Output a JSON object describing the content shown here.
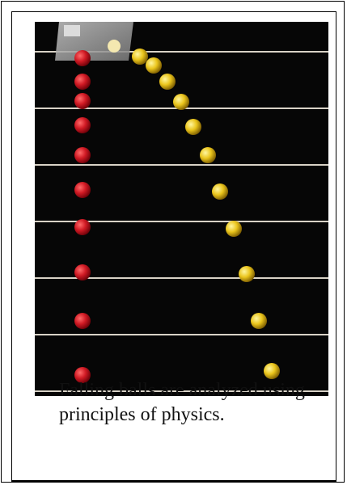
{
  "caption": {
    "line1": "Falling balls are analyzed using",
    "line2": "principles of physics."
  },
  "photo": {
    "background_color": "#060606",
    "rule_color": "#d8d2c6",
    "red_ball_color": "#c8141e",
    "yellow_ball_color": "#e8c21a",
    "red_ball_count": 11,
    "yellow_ball_count": 13,
    "horizontal_rule_count": 6
  },
  "colors": {
    "border": "#000000",
    "caption_text": "#111111",
    "background": "#ffffff"
  }
}
